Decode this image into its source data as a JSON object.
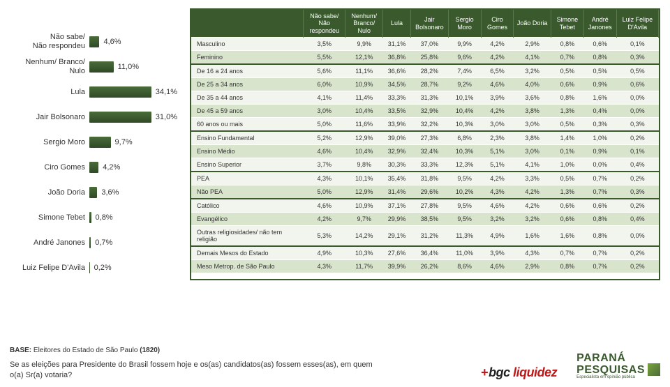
{
  "chart": {
    "type": "bar-horizontal",
    "max_pct": 40,
    "bar_color_top": "#4a6b3a",
    "bar_color_bottom": "#2f4a25",
    "label_fontsize": 11,
    "value_fontsize": 11,
    "items": [
      {
        "label": "Não sabe/\nNão respondeu",
        "value": 4.6,
        "display": "4,6%"
      },
      {
        "label": "Nenhum/ Branco/\nNulo",
        "value": 11.0,
        "display": "11,0%"
      },
      {
        "label": "Lula",
        "value": 34.1,
        "display": "34,1%"
      },
      {
        "label": "Jair Bolsonaro",
        "value": 31.0,
        "display": "31,0%"
      },
      {
        "label": "Sergio Moro",
        "value": 9.7,
        "display": "9,7%"
      },
      {
        "label": "Ciro Gomes",
        "value": 4.2,
        "display": "4,2%"
      },
      {
        "label": "João Doria",
        "value": 3.6,
        "display": "3,6%"
      },
      {
        "label": "Simone Tebet",
        "value": 0.8,
        "display": "0,8%"
      },
      {
        "label": "André Janones",
        "value": 0.7,
        "display": "0,7%"
      },
      {
        "label": "Luiz Felipe D'Avila",
        "value": 0.2,
        "display": "0,2%"
      }
    ]
  },
  "table": {
    "header_bg": "#3a5a2e",
    "header_fg": "#ffffff",
    "row_light": "#f2f5ed",
    "row_dark": "#d9e4cc",
    "border_color": "#3a5a2e",
    "fontsize": 9,
    "col_widths_pct": [
      24,
      9,
      8,
      6,
      8,
      7,
      7,
      8,
      7,
      7,
      9
    ],
    "columns": [
      "",
      "Não sabe/ Não respondeu",
      "Nenhum/ Branco/ Nulo",
      "Lula",
      "Jair Bolsonaro",
      "Sergio Moro",
      "Ciro Gomes",
      "João Doria",
      "Simone Tebet",
      "André Janones",
      "Luiz Felipe D'Avila"
    ],
    "groups": [
      {
        "rows": [
          {
            "label": "Masculino",
            "cells": [
              "3,5%",
              "9,9%",
              "31,1%",
              "37,0%",
              "9,9%",
              "4,2%",
              "2,9%",
              "0,8%",
              "0,6%",
              "0,1%"
            ]
          },
          {
            "label": "Feminino",
            "cells": [
              "5,5%",
              "12,1%",
              "36,8%",
              "25,8%",
              "9,6%",
              "4,2%",
              "4,1%",
              "0,7%",
              "0,8%",
              "0,3%"
            ]
          }
        ]
      },
      {
        "rows": [
          {
            "label": "De 16 a 24 anos",
            "cells": [
              "5,6%",
              "11,1%",
              "36,6%",
              "28,2%",
              "7,4%",
              "6,5%",
              "3,2%",
              "0,5%",
              "0,5%",
              "0,5%"
            ]
          },
          {
            "label": "De 25 a 34 anos",
            "cells": [
              "6,0%",
              "10,9%",
              "34,5%",
              "28,7%",
              "9,2%",
              "4,6%",
              "4,0%",
              "0,6%",
              "0,9%",
              "0,6%"
            ]
          },
          {
            "label": "De 35 a 44 anos",
            "cells": [
              "4,1%",
              "11,4%",
              "33,3%",
              "31,3%",
              "10,1%",
              "3,9%",
              "3,6%",
              "0,8%",
              "1,6%",
              "0,0%"
            ]
          },
          {
            "label": "De 45 a 59 anos",
            "cells": [
              "3,0%",
              "10,4%",
              "33,5%",
              "32,9%",
              "10,4%",
              "4,2%",
              "3,8%",
              "1,3%",
              "0,4%",
              "0,0%"
            ]
          },
          {
            "label": "60 anos ou mais",
            "cells": [
              "5,0%",
              "11,6%",
              "33,9%",
              "32,2%",
              "10,3%",
              "3,0%",
              "3,0%",
              "0,5%",
              "0,3%",
              "0,3%"
            ]
          }
        ]
      },
      {
        "rows": [
          {
            "label": "Ensino Fundamental",
            "cells": [
              "5,2%",
              "12,9%",
              "39,0%",
              "27,3%",
              "6,8%",
              "2,3%",
              "3,8%",
              "1,4%",
              "1,0%",
              "0,2%"
            ]
          },
          {
            "label": "Ensino Médio",
            "cells": [
              "4,6%",
              "10,4%",
              "32,9%",
              "32,4%",
              "10,3%",
              "5,1%",
              "3,0%",
              "0,1%",
              "0,9%",
              "0,1%"
            ]
          },
          {
            "label": "Ensino Superior",
            "cells": [
              "3,7%",
              "9,8%",
              "30,3%",
              "33,3%",
              "12,3%",
              "5,1%",
              "4,1%",
              "1,0%",
              "0,0%",
              "0,4%"
            ]
          }
        ]
      },
      {
        "rows": [
          {
            "label": "PEA",
            "cells": [
              "4,3%",
              "10,1%",
              "35,4%",
              "31,8%",
              "9,5%",
              "4,2%",
              "3,3%",
              "0,5%",
              "0,7%",
              "0,2%"
            ]
          },
          {
            "label": "Não PEA",
            "cells": [
              "5,0%",
              "12,9%",
              "31,4%",
              "29,6%",
              "10,2%",
              "4,3%",
              "4,2%",
              "1,3%",
              "0,7%",
              "0,3%"
            ]
          }
        ]
      },
      {
        "rows": [
          {
            "label": "Católico",
            "cells": [
              "4,6%",
              "10,9%",
              "37,1%",
              "27,8%",
              "9,5%",
              "4,6%",
              "4,2%",
              "0,6%",
              "0,6%",
              "0,2%"
            ]
          },
          {
            "label": "Evangélico",
            "cells": [
              "4,2%",
              "9,7%",
              "29,9%",
              "38,5%",
              "9,5%",
              "3,2%",
              "3,2%",
              "0,6%",
              "0,8%",
              "0,4%"
            ]
          },
          {
            "label": "Outras religiosidades/ não tem religião",
            "cells": [
              "5,3%",
              "14,2%",
              "29,1%",
              "31,2%",
              "11,3%",
              "4,9%",
              "1,6%",
              "1,6%",
              "0,8%",
              "0,0%"
            ]
          }
        ]
      },
      {
        "rows": [
          {
            "label": "Demais Mesos do Estado",
            "cells": [
              "4,9%",
              "10,3%",
              "27,6%",
              "36,4%",
              "11,0%",
              "3,9%",
              "4,3%",
              "0,7%",
              "0,7%",
              "0,2%"
            ]
          },
          {
            "label": "Meso Metrop. de São Paulo",
            "cells": [
              "4,3%",
              "11,7%",
              "39,9%",
              "26,2%",
              "8,6%",
              "4,6%",
              "2,9%",
              "0,8%",
              "0,7%",
              "0,2%"
            ]
          }
        ]
      }
    ]
  },
  "footer": {
    "base_prefix": "BASE:",
    "base_text": "Eleitores do Estado de São Paulo",
    "base_n": "(1820)",
    "question": "Se as eleições para Presidente do Brasil fossem hoje e os(as) candidatos(as) fossem esses(as), em quem o(a) Sr(a) votaria?",
    "logo_bgc_plus": "+",
    "logo_bgc_main": "bgc",
    "logo_bgc_liq": "liquidez",
    "logo_parana_l1": "PARANÁ",
    "logo_parana_l2": "PESQUISAS",
    "logo_parana_l3": "Especialista em opinião pública"
  }
}
